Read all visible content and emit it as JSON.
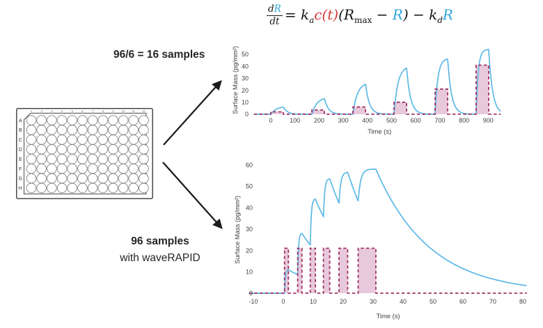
{
  "equation": {
    "fraction": {
      "numerator": [
        {
          "t": "d"
        },
        {
          "t": "R",
          "color": "#2fa7d9"
        }
      ],
      "denominator": [
        {
          "t": "dt"
        }
      ]
    },
    "terms": [
      {
        "t": " = "
      },
      {
        "t": "k"
      },
      {
        "t": "a",
        "sub": true
      },
      {
        "t": "c(t)",
        "color": "#d5393d"
      },
      {
        "t": "("
      },
      {
        "t": "R"
      },
      {
        "t": "max",
        "sub": true,
        "roman": true
      },
      {
        "t": " − "
      },
      {
        "t": "R",
        "color": "#2fa7d9"
      },
      {
        "t": ")"
      },
      {
        "t": " − "
      },
      {
        "t": "k"
      },
      {
        "t": "d",
        "sub": true
      },
      {
        "t": "R",
        "color": "#2fa7d9"
      }
    ]
  },
  "labels": {
    "samples_top": "96/6 = 16 samples",
    "samples_bottom_line1": "96 samples",
    "samples_bottom_line2": "with waveRAPID"
  },
  "plate": {
    "row_labels": [
      "A",
      "B",
      "C",
      "D",
      "E",
      "F",
      "G",
      "H"
    ],
    "column_labels": [
      "1",
      "2",
      "3",
      "4",
      "5",
      "6",
      "7",
      "8",
      "9",
      "10",
      "11",
      "12"
    ]
  },
  "colors": {
    "response_line": "#5cb8e6",
    "concentration_line": "#a23367",
    "concentration_fill": "#e8c9dc",
    "arrow": "#1c1c1c",
    "plate_outline": "#4a4a4a",
    "well_outline": "#828282",
    "axis_text": "#404040"
  },
  "chart_data": [
    {
      "type": "line",
      "title": "",
      "xlabel": "Time (s)",
      "ylabel": "Surface Mass (pg/mm²)",
      "xlim": [
        -70,
        952
      ],
      "ylim": [
        0,
        55
      ],
      "xticks": [
        0,
        100,
        200,
        300,
        400,
        500,
        600,
        700,
        800,
        900
      ],
      "yticks": [
        0,
        10,
        20,
        30,
        40,
        50
      ],
      "grid": false,
      "legend": "none",
      "series": [
        {
          "name": "injected concentration pulses c(t)",
          "style": "dashed",
          "filled": true,
          "pulses": [
            {
              "start": 0,
              "end": 52,
              "height": 2
            },
            {
              "start": 170,
              "end": 222,
              "height": 3.5
            },
            {
              "start": 340,
              "end": 392,
              "height": 6
            },
            {
              "start": 510,
              "end": 562,
              "height": 10
            },
            {
              "start": 680,
              "end": 732,
              "height": 21
            },
            {
              "start": 850,
              "end": 902,
              "height": 41
            }
          ]
        },
        {
          "name": "binding response R(t)",
          "style": "solid",
          "response_peaks": [
            6,
            13,
            25,
            38.5,
            46,
            54
          ]
        }
      ],
      "model": {
        "rise_sharpness": [
          2.2,
          2.5,
          2.8,
          3.2,
          4.5,
          6
        ],
        "decay_tau": 16,
        "final_decay_tau": 16
      }
    },
    {
      "type": "line",
      "title": "",
      "xlabel": "Time (s)",
      "ylabel": "Surface Mass (pg/mm²)",
      "xlim": [
        -11.5,
        81.3
      ],
      "ylim": [
        0,
        60
      ],
      "xticks": [
        -10,
        0,
        10,
        20,
        30,
        40,
        50,
        60,
        70,
        80
      ],
      "yticks": [
        0,
        10,
        20,
        30,
        40,
        50,
        60
      ],
      "grid": false,
      "legend": "none",
      "series": [
        {
          "name": "injected concentration pulses c(t)",
          "style": "dashed",
          "filled": true,
          "pulses": [
            {
              "start": 0.4,
              "end": 1.7,
              "height": 21
            },
            {
              "start": 4.8,
              "end": 6.2,
              "height": 21
            },
            {
              "start": 9.0,
              "end": 10.7,
              "height": 21
            },
            {
              "start": 13.4,
              "end": 15.5,
              "height": 21
            },
            {
              "start": 18.6,
              "end": 21.5,
              "height": 21
            },
            {
              "start": 25.0,
              "end": 30.9,
              "height": 21
            }
          ]
        },
        {
          "name": "binding response R(t)",
          "style": "solid",
          "response_peaks": [
            11,
            28,
            44,
            53.5,
            56.5,
            58
          ]
        }
      ],
      "model": {
        "rise_sharpness": [
          5,
          5,
          5,
          5,
          5,
          7
        ],
        "decay_tau": 13,
        "final_decay_tau": 18
      }
    }
  ]
}
